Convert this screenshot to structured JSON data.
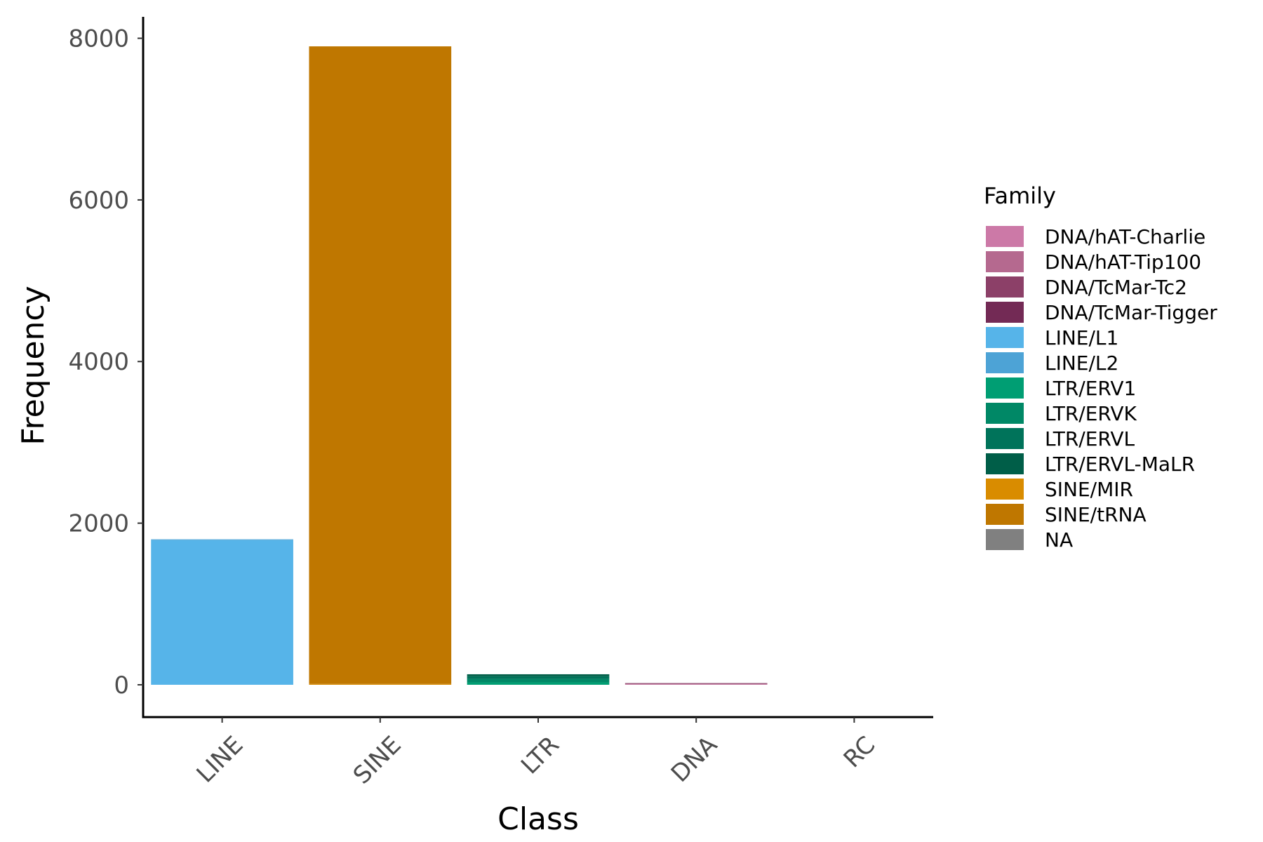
{
  "chart_data": {
    "type": "bar",
    "stacked": true,
    "xlabel": "Class",
    "ylabel": "Frequency",
    "categories": [
      "LINE",
      "SINE",
      "LTR",
      "DNA",
      "RC"
    ],
    "yticks": [
      0,
      2000,
      4000,
      6000,
      8000
    ],
    "ylim": [
      -400,
      8300
    ],
    "grid": false,
    "legend": {
      "title": "Family",
      "placement": "right"
    },
    "series": [
      {
        "name": "DNA/hAT-Charlie",
        "color": "#CC79A7",
        "values": [
          0,
          0,
          0,
          5,
          0
        ]
      },
      {
        "name": "DNA/hAT-Tip100",
        "color": "#B5698F",
        "values": [
          0,
          0,
          0,
          10,
          0
        ]
      },
      {
        "name": "DNA/TcMar-Tc2",
        "color": "#8C4068",
        "values": [
          0,
          0,
          0,
          3,
          0
        ]
      },
      {
        "name": "DNA/TcMar-Tigger",
        "color": "#732A55",
        "values": [
          0,
          0,
          0,
          2,
          0
        ]
      },
      {
        "name": "LINE/L1",
        "color": "#56B4E9",
        "values": [
          1790,
          0,
          0,
          0,
          0
        ]
      },
      {
        "name": "LINE/L2",
        "color": "#4DA3D6",
        "values": [
          10,
          0,
          0,
          0,
          0
        ]
      },
      {
        "name": "LTR/ERV1",
        "color": "#009E73",
        "values": [
          0,
          0,
          30,
          0,
          0
        ]
      },
      {
        "name": "LTR/ERVK",
        "color": "#008866",
        "values": [
          0,
          0,
          40,
          0,
          0
        ]
      },
      {
        "name": "LTR/ERVL",
        "color": "#00735A",
        "values": [
          0,
          0,
          35,
          0,
          0
        ]
      },
      {
        "name": "LTR/ERVL-MaLR",
        "color": "#005E48",
        "values": [
          0,
          0,
          25,
          0,
          0
        ]
      },
      {
        "name": "SINE/MIR",
        "color": "#D98C00",
        "values": [
          0,
          10,
          0,
          0,
          0
        ]
      },
      {
        "name": "SINE/tRNA",
        "color": "#BF7700",
        "values": [
          0,
          7890,
          0,
          0,
          0
        ]
      },
      {
        "name": "NA",
        "color": "#808080",
        "values": [
          0,
          0,
          0,
          0,
          0
        ]
      }
    ]
  }
}
